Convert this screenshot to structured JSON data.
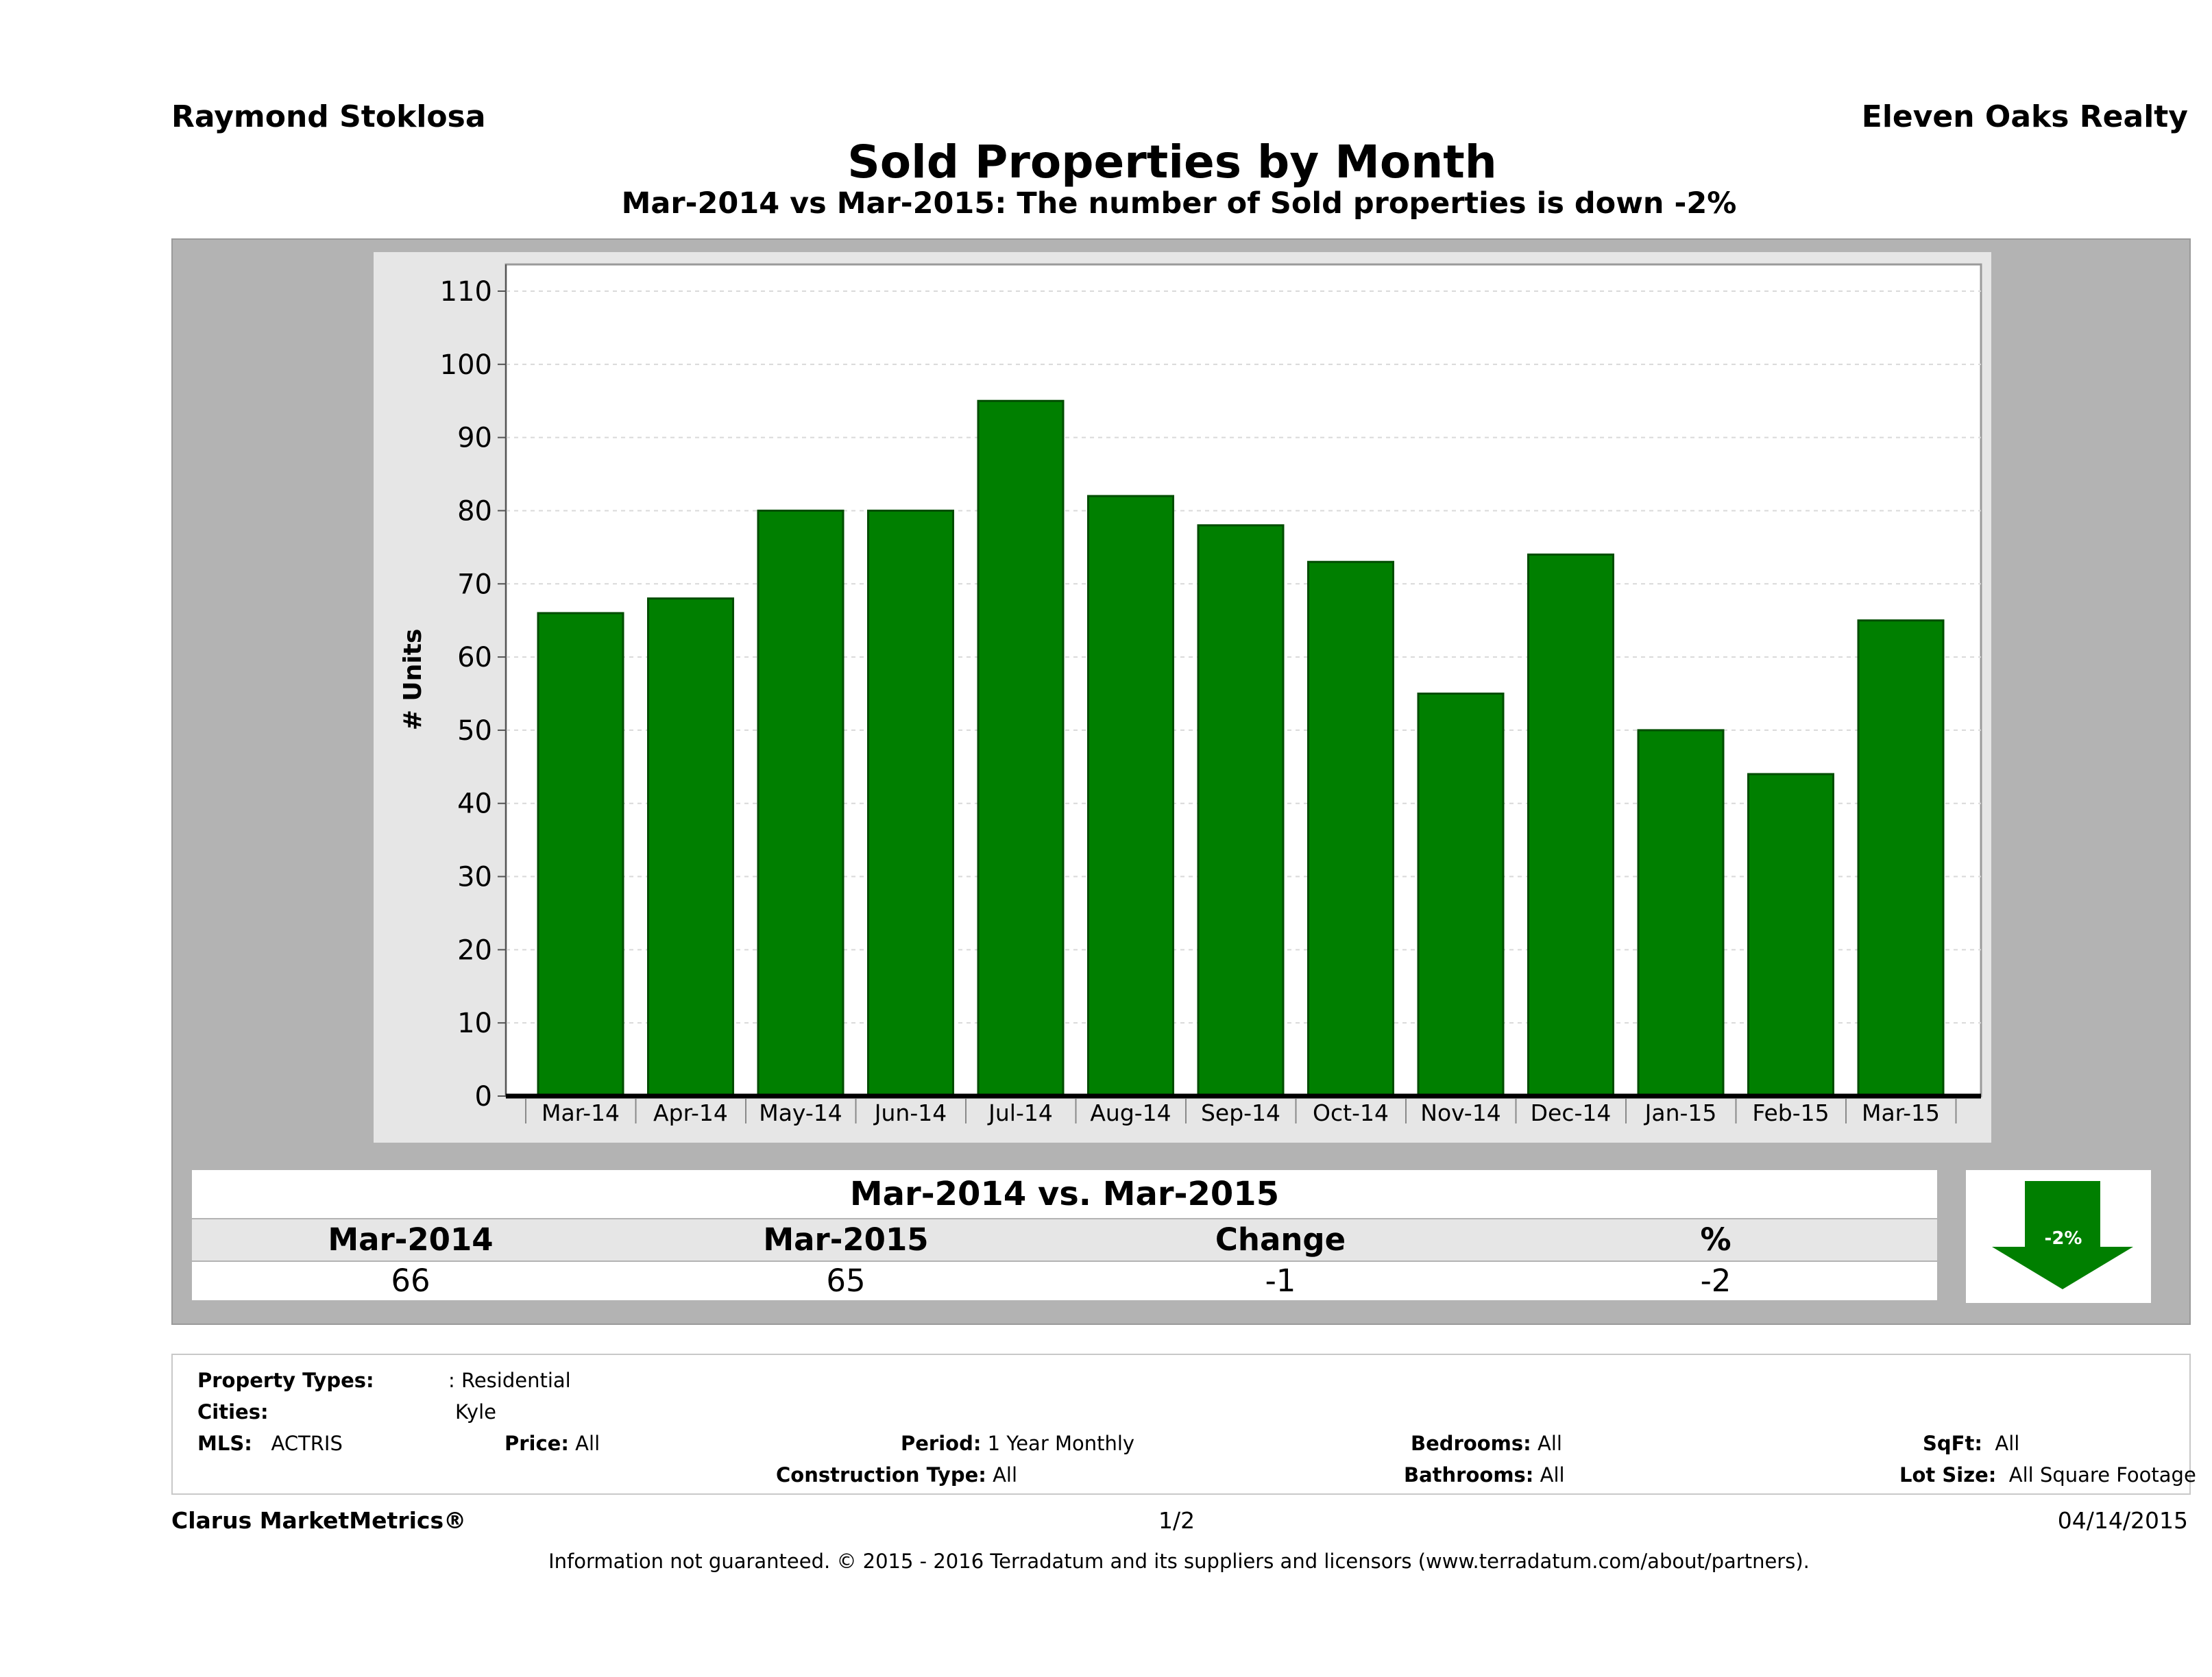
{
  "header": {
    "agent": "Raymond Stoklosa",
    "company": "Eleven Oaks Realty",
    "title": "Sold Properties by Month",
    "subtitle": "Mar-2014 vs Mar-2015: The number of Sold  properties is down -2%"
  },
  "chart_data": {
    "type": "bar",
    "categories": [
      "Mar-14",
      "Apr-14",
      "May-14",
      "Jun-14",
      "Jul-14",
      "Aug-14",
      "Sep-14",
      "Oct-14",
      "Nov-14",
      "Dec-14",
      "Jan-15",
      "Feb-15",
      "Mar-15"
    ],
    "values": [
      66,
      68,
      80,
      80,
      95,
      82,
      78,
      73,
      55,
      74,
      50,
      44,
      65
    ],
    "ylabel": "# Units",
    "ylim": [
      0,
      110
    ],
    "yticks": [
      0,
      10,
      20,
      30,
      40,
      50,
      60,
      70,
      80,
      90,
      100,
      110
    ],
    "bar_color": "#007f00",
    "grid": true
  },
  "summary": {
    "title": "Mar-2014 vs. Mar-2015",
    "headers": [
      "Mar-2014",
      "Mar-2015",
      "Change",
      "%"
    ],
    "values": [
      "66",
      "65",
      "-1",
      "-2"
    ],
    "arrow_label": "-2%",
    "arrow_direction": "down",
    "arrow_color": "#007f00"
  },
  "filters": {
    "property_types_label": "Property Types:",
    "property_types_value": ": Residential",
    "cities_label": "Cities:",
    "cities_value": "Kyle",
    "mls_label": "MLS:",
    "mls_value": "ACTRIS",
    "price_label": "Price:",
    "price_value": "All",
    "period_label": "Period:",
    "period_value": "1 Year Monthly",
    "construction_label": "Construction Type:",
    "construction_value": "All",
    "bedrooms_label": "Bedrooms:",
    "bedrooms_value": "All",
    "bathrooms_label": "Bathrooms:",
    "bathrooms_value": "All",
    "sqft_label": "SqFt:",
    "sqft_value": "All",
    "lotsize_label": "Lot Size:",
    "lotsize_value": "All Square Footage"
  },
  "footer": {
    "brand": "Clarus MarketMetrics®",
    "page": "1/2",
    "date": "04/14/2015",
    "disclaimer": "Information not guaranteed. © 2015 - 2016 Terradatum and its suppliers and licensors (www.terradatum.com/about/partners)."
  }
}
